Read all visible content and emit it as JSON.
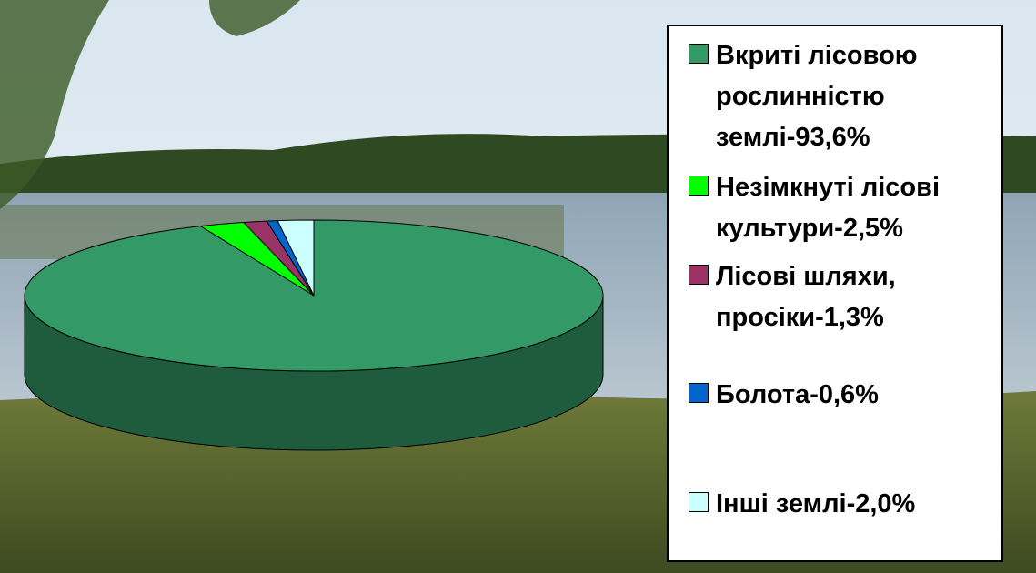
{
  "chart_data": {
    "type": "pie",
    "categories": [
      "Вкриті лісовою рослинністю землі-93,6%",
      "Незімкнуті лісові культури-2,5%",
      "Лісові шляхи, просіки-1,3%",
      "Болота-0,6%",
      "Інші землі-2,0%"
    ],
    "values": [
      93.6,
      2.5,
      1.3,
      0.6,
      2.0
    ],
    "colors": [
      "#339966",
      "#00ff00",
      "#993366",
      "#0066cc",
      "#ccffff"
    ]
  }
}
